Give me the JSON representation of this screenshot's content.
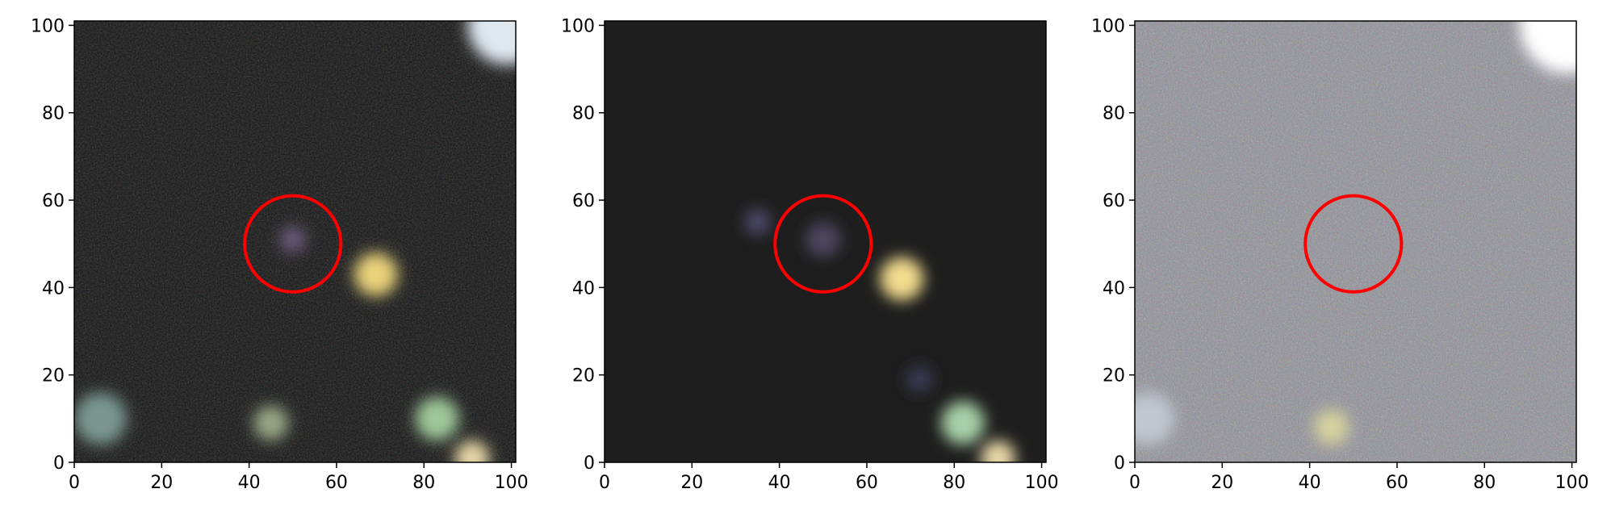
{
  "figure": {
    "panels": [
      {
        "id": "panel-1",
        "style": "noisy",
        "background": "#141414",
        "xticks": [
          "0",
          "20",
          "40",
          "60",
          "80",
          "100"
        ],
        "yticks": [
          "0",
          "20",
          "40",
          "60",
          "80",
          "100"
        ],
        "xlim": [
          0,
          101
        ],
        "ylim": [
          0,
          101
        ],
        "circle": {
          "cx": 50,
          "cy": 50,
          "r": 11,
          "color": "#ff0000"
        },
        "sources": [
          {
            "x": 69,
            "y": 43,
            "r": 5,
            "color": "#e8d27a"
          },
          {
            "x": 83,
            "y": 10,
            "r": 5,
            "color": "#9fc79a"
          },
          {
            "x": 91,
            "y": 1,
            "r": 4,
            "color": "#e7d7a6"
          },
          {
            "x": 45,
            "y": 9,
            "r": 4,
            "color": "#9aa786"
          },
          {
            "x": 99,
            "y": 100,
            "r": 9,
            "color": "#dfe7ef"
          },
          {
            "x": 6,
            "y": 10,
            "r": 6,
            "color": "#79978f"
          },
          {
            "x": 50,
            "y": 51,
            "r": 3,
            "color": "#6b5a7a"
          }
        ]
      },
      {
        "id": "panel-2",
        "style": "smooth",
        "background": "#1e1e1e",
        "xticks": [
          "0",
          "20",
          "40",
          "60",
          "80",
          "100"
        ],
        "yticks": [
          "0",
          "20",
          "40",
          "60",
          "80",
          "100"
        ],
        "xlim": [
          0,
          101
        ],
        "ylim": [
          0,
          101
        ],
        "circle": {
          "cx": 50,
          "cy": 50,
          "r": 11,
          "color": "#ff0000"
        },
        "sources": [
          {
            "x": 68,
            "y": 42,
            "r": 5,
            "color": "#f2dc8e"
          },
          {
            "x": 82,
            "y": 9,
            "r": 5,
            "color": "#a8d0a7"
          },
          {
            "x": 90,
            "y": 1,
            "r": 4,
            "color": "#ead9a8"
          },
          {
            "x": 35,
            "y": 55,
            "r": 3,
            "color": "#4e4a69"
          },
          {
            "x": 50,
            "y": 51,
            "r": 4,
            "color": "#4d4760"
          },
          {
            "x": 72,
            "y": 19,
            "r": 3,
            "color": "#3a3a56"
          }
        ]
      },
      {
        "id": "panel-3",
        "style": "residual",
        "background": "#8f8f97",
        "xticks": [
          "0",
          "20",
          "40",
          "60",
          "80",
          "100"
        ],
        "yticks": [
          "0",
          "20",
          "40",
          "60",
          "80",
          "100"
        ],
        "xlim": [
          0,
          101
        ],
        "ylim": [
          0,
          101
        ],
        "circle": {
          "cx": 50,
          "cy": 50,
          "r": 11,
          "color": "#ff0000"
        },
        "sources": [
          {
            "x": 99,
            "y": 100,
            "r": 11,
            "color": "#ffffff"
          },
          {
            "x": 45,
            "y": 8,
            "r": 4,
            "color": "#d6d39e"
          },
          {
            "x": 3,
            "y": 10,
            "r": 6,
            "color": "#c0c7cf"
          }
        ]
      }
    ]
  }
}
